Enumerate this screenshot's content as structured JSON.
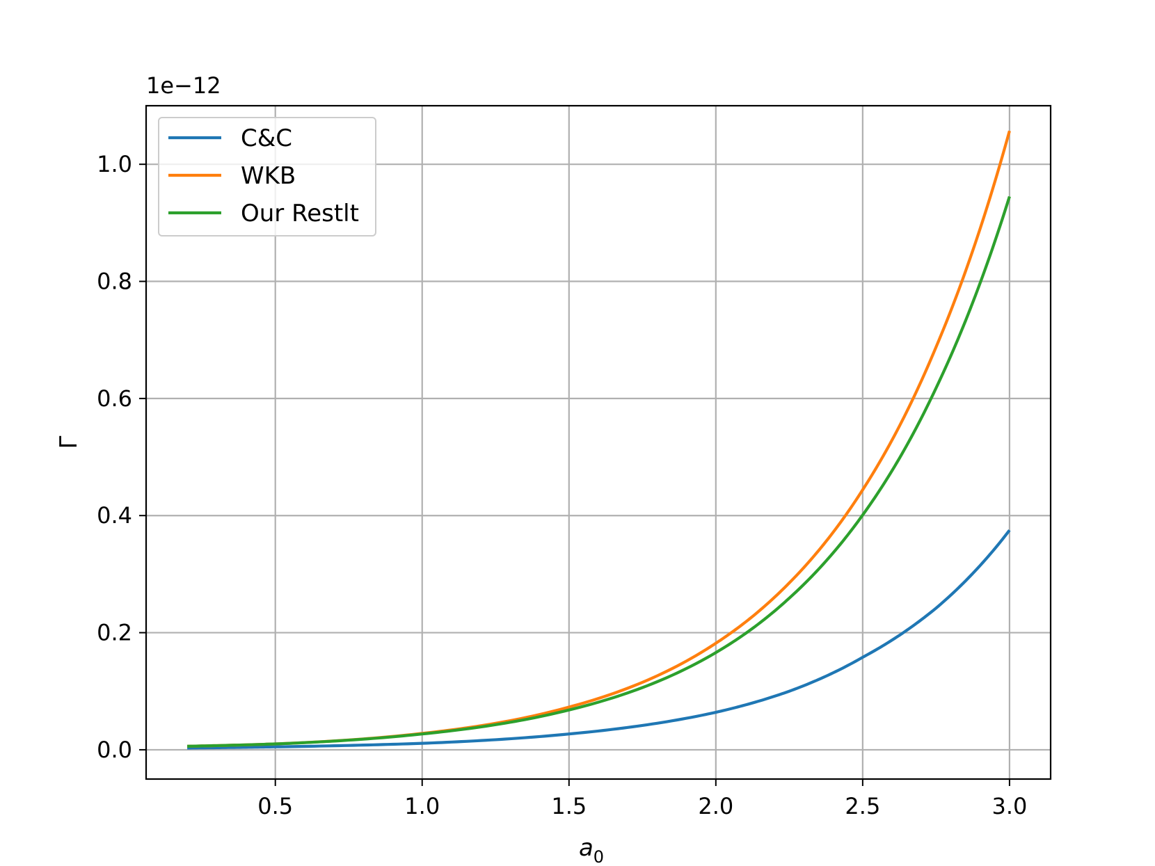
{
  "chart_data": {
    "type": "line",
    "title": "",
    "xlabel_base": "a",
    "xlabel_sub": "0",
    "ylabel": "Γ",
    "offset_text": "1e−12",
    "xlim": [
      0.06,
      3.14
    ],
    "ylim": [
      -0.05,
      1.1
    ],
    "xticks": [
      0.5,
      1.0,
      1.5,
      2.0,
      2.5,
      3.0
    ],
    "xtick_labels": [
      "0.5",
      "1.0",
      "1.5",
      "2.0",
      "2.5",
      "3.0"
    ],
    "yticks": [
      0.0,
      0.2,
      0.4,
      0.6,
      0.8,
      1.0
    ],
    "ytick_labels": [
      "0.0",
      "0.2",
      "0.4",
      "0.6",
      "0.8",
      "1.0"
    ],
    "grid": true,
    "legend_position": "top-left",
    "x": [
      0.2,
      0.5,
      1.0,
      1.5,
      2.0,
      2.25,
      2.5,
      2.75,
      3.0
    ],
    "series": [
      {
        "name": "C&C",
        "color": "#1f77b4",
        "values": [
          0.003,
          0.005,
          0.011,
          0.027,
          0.064,
          0.1,
          0.158,
          0.242,
          0.375
        ]
      },
      {
        "name": "WKB",
        "color": "#ff7f0e",
        "values": [
          0.006,
          0.01,
          0.028,
          0.073,
          0.182,
          0.285,
          0.444,
          0.688,
          1.057
        ]
      },
      {
        "name": "Our Restlt",
        "color": "#2ca02c",
        "values": [
          0.006,
          0.01,
          0.027,
          0.068,
          0.166,
          0.259,
          0.401,
          0.618,
          0.945
        ]
      }
    ]
  }
}
